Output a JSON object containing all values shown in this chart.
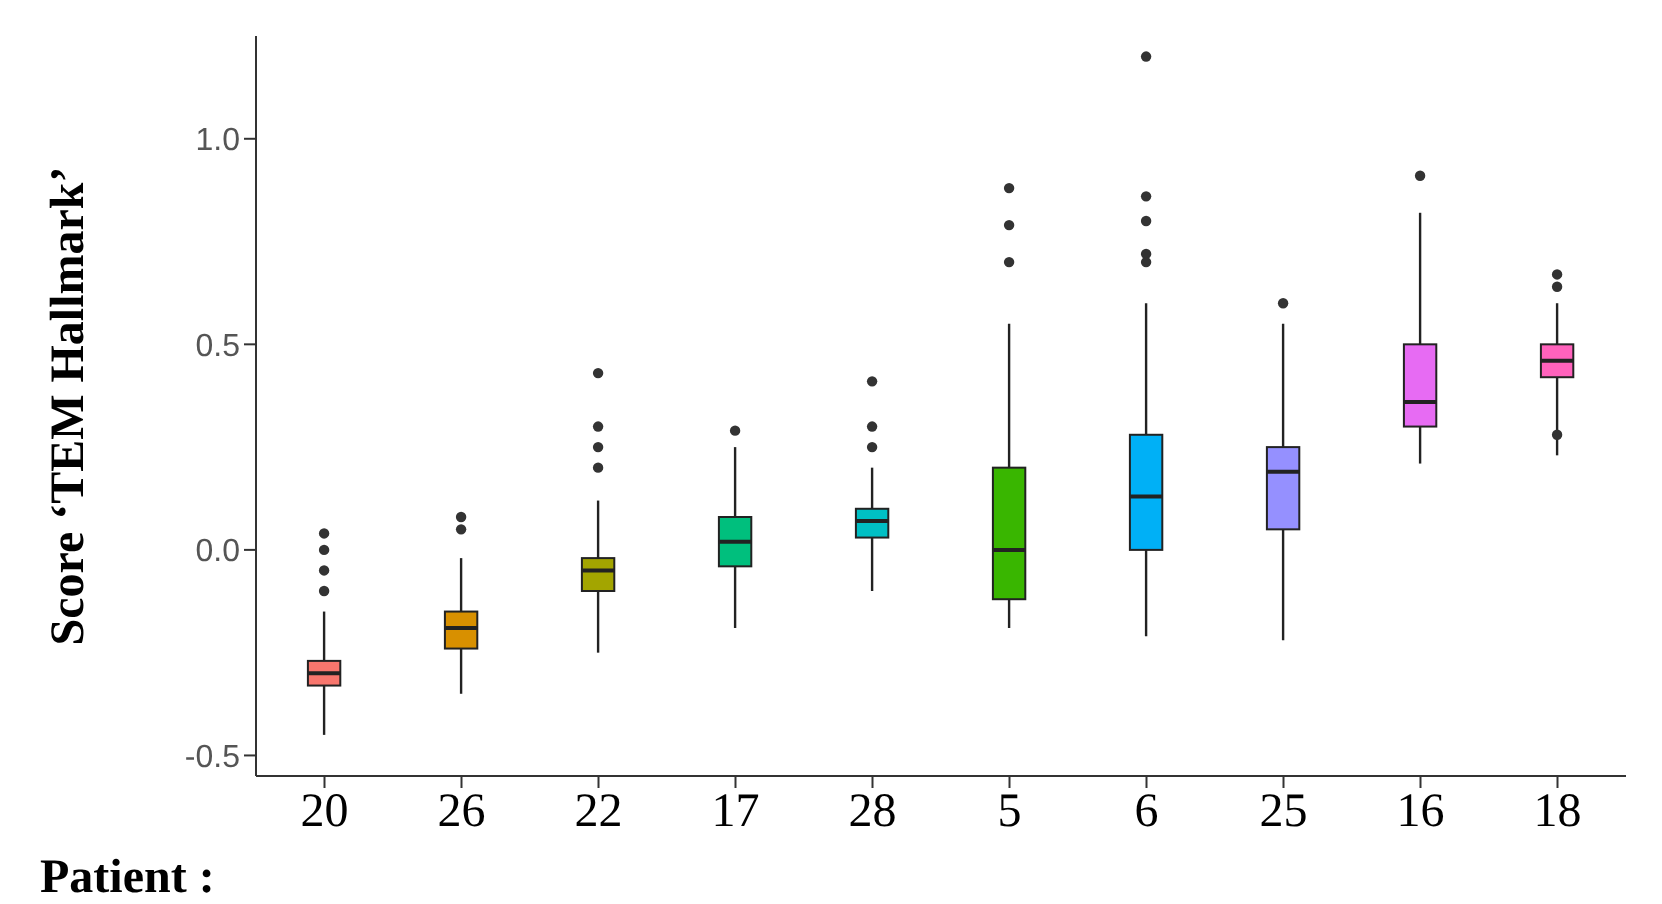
{
  "chart_data": {
    "type": "box",
    "xlabel": "Patient :",
    "ylabel": "Score ‘TEM Hallmark’",
    "categories": [
      "20",
      "26",
      "22",
      "17",
      "28",
      "5",
      "6",
      "25",
      "16",
      "18"
    ],
    "colors": [
      "#f8766d",
      "#d89000",
      "#a3a500",
      "#00bf7d",
      "#00bfc4",
      "#39b600",
      "#00b0f6",
      "#9590ff",
      "#e76bf3",
      "#ff62bc"
    ],
    "boxes": [
      {
        "low": -0.45,
        "q1": -0.33,
        "median": -0.3,
        "q3": -0.27,
        "high": -0.15,
        "outliers": [
          0.04,
          0.0,
          -0.05,
          -0.1
        ]
      },
      {
        "low": -0.35,
        "q1": -0.24,
        "median": -0.19,
        "q3": -0.15,
        "high": -0.02,
        "outliers": [
          0.08,
          0.05
        ]
      },
      {
        "low": -0.25,
        "q1": -0.1,
        "median": -0.05,
        "q3": -0.02,
        "high": 0.12,
        "outliers": [
          0.43,
          0.3,
          0.25,
          0.2
        ]
      },
      {
        "low": -0.19,
        "q1": -0.04,
        "median": 0.02,
        "q3": 0.08,
        "high": 0.25,
        "outliers": [
          0.29
        ]
      },
      {
        "low": -0.1,
        "q1": 0.03,
        "median": 0.07,
        "q3": 0.1,
        "high": 0.2,
        "outliers": [
          0.41,
          0.3,
          0.25
        ]
      },
      {
        "low": -0.19,
        "q1": -0.12,
        "median": 0.0,
        "q3": 0.2,
        "high": 0.55,
        "outliers": [
          0.88,
          0.79,
          0.7
        ]
      },
      {
        "low": -0.21,
        "q1": 0.0,
        "median": 0.13,
        "q3": 0.28,
        "high": 0.6,
        "outliers": [
          1.2,
          0.86,
          0.8,
          0.72,
          0.7
        ]
      },
      {
        "low": -0.22,
        "q1": 0.05,
        "median": 0.19,
        "q3": 0.25,
        "high": 0.55,
        "outliers": [
          0.6
        ]
      },
      {
        "low": 0.21,
        "q1": 0.3,
        "median": 0.36,
        "q3": 0.5,
        "high": 0.82,
        "outliers": [
          0.91
        ]
      },
      {
        "low": 0.23,
        "q1": 0.42,
        "median": 0.46,
        "q3": 0.5,
        "high": 0.6,
        "outliers": [
          0.67,
          0.64,
          0.28
        ]
      }
    ],
    "ylim": [
      -0.55,
      1.25
    ],
    "yticks": [
      {
        "value": -0.5,
        "label": "-0.5"
      },
      {
        "value": 0,
        "label": "0.0"
      },
      {
        "value": 0.5,
        "label": "0.5"
      },
      {
        "value": 1,
        "label": "1.0"
      }
    ],
    "grid": false,
    "legend": false
  }
}
